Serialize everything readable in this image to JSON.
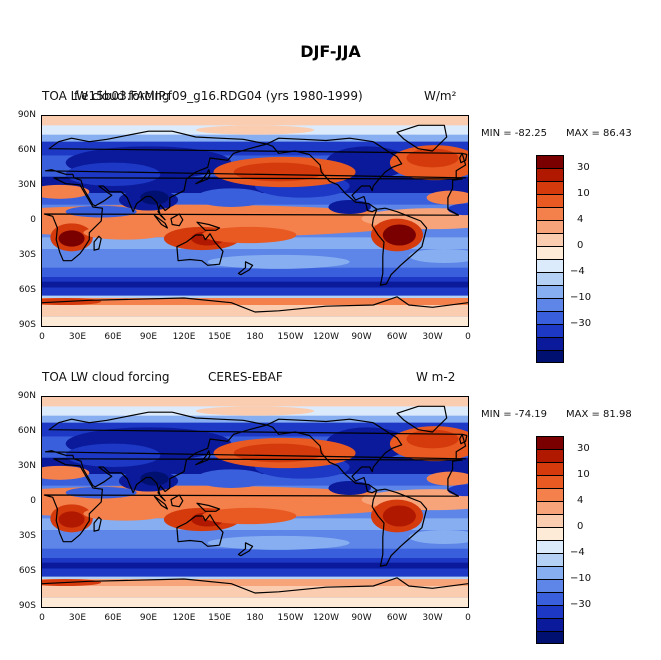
{
  "figure_title": "DJF-JJA",
  "colors": {
    "levels_top_to_bottom": [
      "#7a0000",
      "#b01800",
      "#d43a0c",
      "#e85a22",
      "#f4804c",
      "#f8a47a",
      "#fbcdb0",
      "#fdebd8",
      "#dcebfb",
      "#b4d0f5",
      "#86aef0",
      "#5e86e8",
      "#3a5fdc",
      "#1c38c4",
      "#0a1a9a",
      "#001070"
    ],
    "land_outline": "#000000"
  },
  "colorbar_labels": [
    "30",
    "10",
    "4",
    "0",
    "-4",
    "-10",
    "-30"
  ],
  "lat_labels": [
    "90N",
    "60N",
    "30N",
    "0",
    "30S",
    "60S",
    "90S"
  ],
  "lon_labels": [
    "0",
    "30E",
    "60E",
    "90E",
    "120E",
    "150E",
    "180",
    "150W",
    "120W",
    "90W",
    "60W",
    "30W",
    "0"
  ],
  "panels": [
    {
      "title_left": "TOA LW cloud forcing",
      "title_center": "f.e15b03.FAMIP.f09_g16.RDG04 (yrs 1980-1999)",
      "units": "W/m²",
      "min_label": "MIN = -82.25",
      "max_label": "MAX =  86.43",
      "min": -82.25,
      "max": 86.43
    },
    {
      "title_left": "TOA LW cloud forcing",
      "title_center": "CERES-EBAF",
      "units": "W m-2",
      "min_label": "MIN = -74.19",
      "max_label": "MAX =  81.98",
      "min": -74.19,
      "max": 81.98
    }
  ]
}
